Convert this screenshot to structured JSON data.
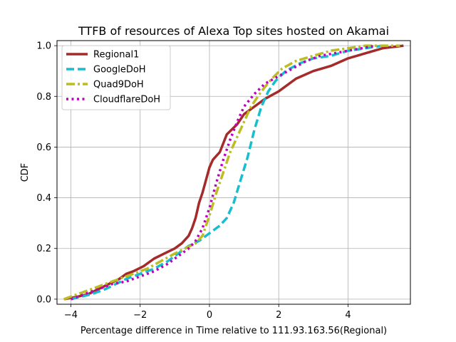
{
  "chart_data": {
    "type": "line",
    "title": "TTFB of resources of Alexa Top sites hosted on Akamai",
    "xlabel": "Percentage difference in Time relative to 111.93.163.56(Regional)",
    "ylabel": "CDF",
    "xlim": [
      -4.4,
      5.8
    ],
    "ylim": [
      -0.02,
      1.02
    ],
    "xticks": [
      -4,
      -2,
      0,
      2,
      4
    ],
    "xtick_labels": [
      "−4",
      "−2",
      "0",
      "2",
      "4"
    ],
    "yticks": [
      0.0,
      0.2,
      0.4,
      0.6,
      0.8,
      1.0
    ],
    "ytick_labels": [
      "0.0",
      "0.2",
      "0.4",
      "0.6",
      "0.8",
      "1.0"
    ],
    "grid": true,
    "legend_position": "top-left",
    "series": [
      {
        "name": "Regional1",
        "color": "#a52a2a",
        "dash": "solid",
        "x": [
          -4.2,
          -3.8,
          -3.5,
          -3.2,
          -2.9,
          -2.6,
          -2.4,
          -2.2,
          -1.9,
          -1.6,
          -1.3,
          -1.0,
          -0.8,
          -0.6,
          -0.5,
          -0.4,
          -0.3,
          -0.2,
          -0.1,
          0.0,
          0.1,
          0.3,
          0.5,
          0.8,
          1.0,
          1.3,
          1.6,
          2.0,
          2.5,
          3.0,
          3.5,
          4.0,
          4.5,
          5.0,
          5.6
        ],
        "y": [
          0.0,
          0.01,
          0.02,
          0.04,
          0.06,
          0.08,
          0.1,
          0.11,
          0.13,
          0.16,
          0.18,
          0.2,
          0.22,
          0.25,
          0.28,
          0.32,
          0.38,
          0.42,
          0.47,
          0.52,
          0.55,
          0.58,
          0.65,
          0.69,
          0.73,
          0.76,
          0.79,
          0.82,
          0.87,
          0.9,
          0.92,
          0.95,
          0.97,
          0.99,
          1.0
        ]
      },
      {
        "name": "GoogleDoH",
        "color": "#17becf",
        "dash": "dashed",
        "x": [
          -4.0,
          -3.7,
          -3.4,
          -3.0,
          -2.7,
          -2.4,
          -2.0,
          -1.6,
          -1.2,
          -0.9,
          -0.6,
          -0.3,
          0.0,
          0.3,
          0.5,
          0.7,
          0.9,
          1.1,
          1.3,
          1.5,
          1.7,
          1.9,
          2.2,
          2.6,
          3.0,
          3.5,
          4.0,
          4.5,
          5.0
        ],
        "y": [
          0.0,
          0.01,
          0.02,
          0.04,
          0.06,
          0.08,
          0.1,
          0.12,
          0.15,
          0.18,
          0.21,
          0.23,
          0.26,
          0.29,
          0.32,
          0.38,
          0.47,
          0.56,
          0.67,
          0.76,
          0.82,
          0.86,
          0.9,
          0.93,
          0.95,
          0.96,
          0.98,
          0.99,
          1.0
        ]
      },
      {
        "name": "Quad9DoH",
        "color": "#bcbd22",
        "dash": "dashdot",
        "x": [
          -4.2,
          -3.8,
          -3.4,
          -3.0,
          -2.6,
          -2.2,
          -1.8,
          -1.4,
          -1.0,
          -0.7,
          -0.4,
          -0.2,
          0.0,
          0.2,
          0.4,
          0.6,
          0.8,
          1.0,
          1.2,
          1.5,
          1.8,
          2.1,
          2.5,
          3.0,
          3.5,
          4.0,
          4.5,
          5.0,
          5.5
        ],
        "y": [
          0.0,
          0.02,
          0.04,
          0.06,
          0.08,
          0.1,
          0.12,
          0.15,
          0.18,
          0.2,
          0.22,
          0.25,
          0.33,
          0.42,
          0.5,
          0.58,
          0.64,
          0.7,
          0.76,
          0.82,
          0.87,
          0.91,
          0.94,
          0.96,
          0.98,
          0.99,
          1.0,
          1.0,
          1.0
        ]
      },
      {
        "name": "CloudflareDoH",
        "color": "#bf00bf",
        "dash": "dotted",
        "x": [
          -4.0,
          -3.6,
          -3.2,
          -2.8,
          -2.4,
          -2.0,
          -1.6,
          -1.2,
          -0.9,
          -0.6,
          -0.4,
          -0.2,
          0.0,
          0.2,
          0.4,
          0.6,
          0.8,
          1.0,
          1.3,
          1.6,
          2.0,
          2.4,
          2.8,
          3.2,
          3.6,
          4.0,
          4.4,
          4.8
        ],
        "y": [
          0.0,
          0.02,
          0.04,
          0.06,
          0.07,
          0.09,
          0.11,
          0.14,
          0.17,
          0.2,
          0.23,
          0.28,
          0.36,
          0.46,
          0.55,
          0.63,
          0.7,
          0.76,
          0.81,
          0.85,
          0.88,
          0.91,
          0.94,
          0.96,
          0.97,
          0.98,
          0.99,
          1.0
        ]
      }
    ]
  }
}
